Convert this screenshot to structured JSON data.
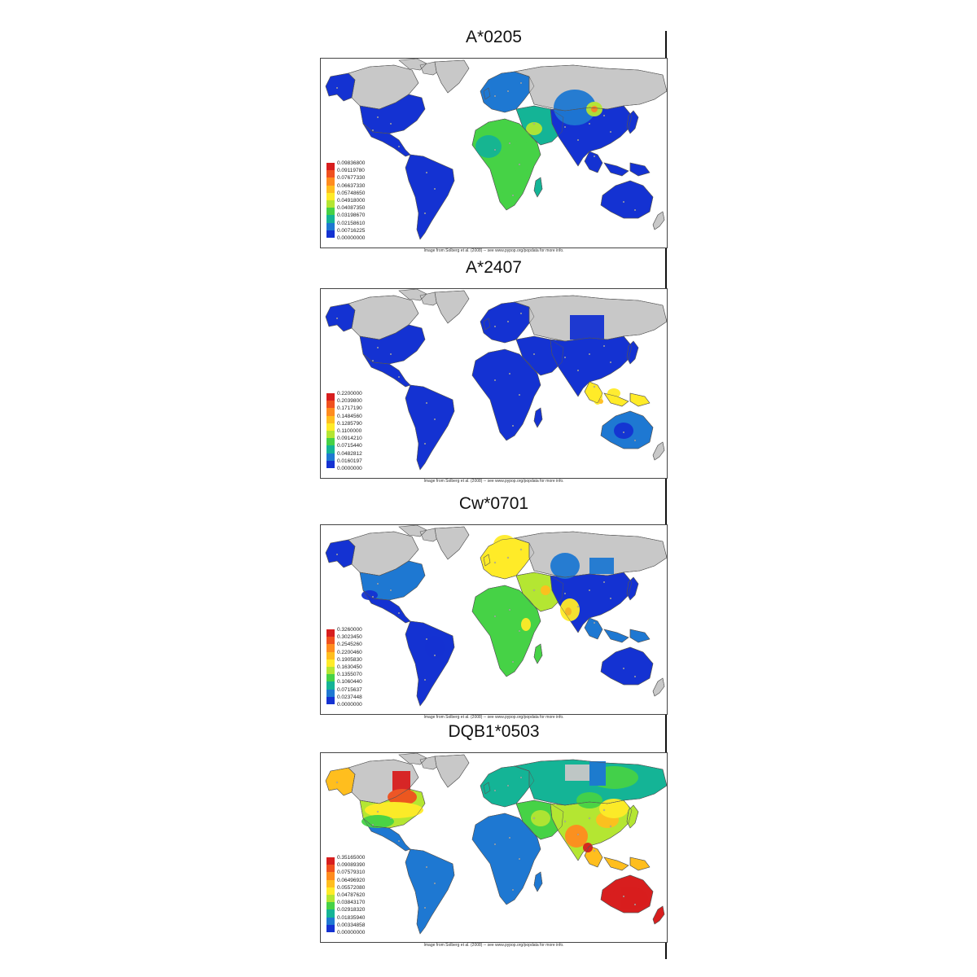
{
  "caption": "Image from Solberg et al. (2008) -- see www.pypop.org/popdata for more info.",
  "colors": {
    "ramp": [
      "#d81e1e",
      "#f0501e",
      "#ff8c1e",
      "#ffbe1e",
      "#ffeb28",
      "#b4e632",
      "#46d246",
      "#14b496",
      "#1e78d2",
      "#1432d2"
    ],
    "land_nodata": "#c8c8c8",
    "ocean": "#ffffff"
  },
  "maps": [
    {
      "title": "A*0205",
      "legend": [
        "0.09836800",
        "0.09119780",
        "0.07677330",
        "0.06637330",
        "0.05748650",
        "0.04918000",
        "0.04087350",
        "0.03198670",
        "0.02158610",
        "0.00716225",
        "0.00000000"
      ]
    },
    {
      "title": "A*2407",
      "legend": [
        "0.2200000",
        "0.2039800",
        "0.1717190",
        "0.1484560",
        "0.1285790",
        "0.1100000",
        "0.0914210",
        "0.0715440",
        "0.0482812",
        "0.0160197",
        "0.0000000"
      ]
    },
    {
      "title": "Cw*0701",
      "legend": [
        "0.3260000",
        "0.3023450",
        "0.2545260",
        "0.2200460",
        "0.1905830",
        "0.1630450",
        "0.1355070",
        "0.1060440",
        "0.0715637",
        "0.0237448",
        "0.0000000"
      ]
    },
    {
      "title": "DQB1*0503",
      "legend": [
        "0.35165000",
        "0.09089390",
        "0.07579310",
        "0.06496920",
        "0.05572080",
        "0.04787620",
        "0.03843170",
        "0.02918320",
        "0.01835940",
        "0.00334858",
        "0.00000000"
      ]
    }
  ]
}
